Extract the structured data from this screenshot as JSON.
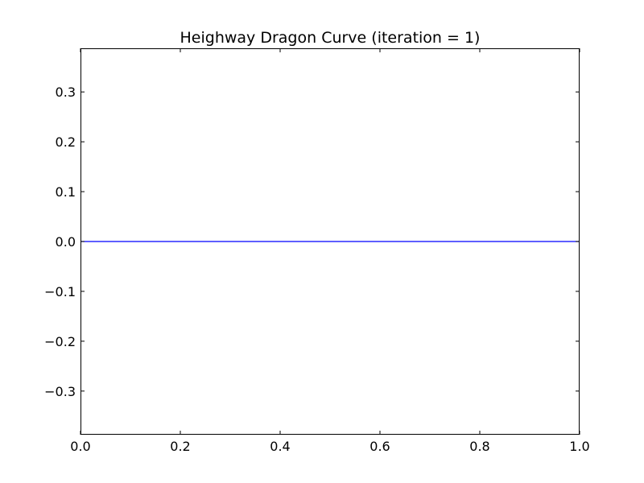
{
  "chart_data": {
    "type": "line",
    "title": "Heighway Dragon Curve  (iteration = 1)",
    "xlabel": "",
    "ylabel": "",
    "xlim": [
      0.0,
      1.0
    ],
    "ylim": [
      -0.3875,
      0.3875
    ],
    "x_ticks": [
      "0.0",
      "0.2",
      "0.4",
      "0.6",
      "0.8",
      "1.0"
    ],
    "x_tick_values": [
      0.0,
      0.2,
      0.4,
      0.6,
      0.8,
      1.0
    ],
    "y_ticks": [
      "0.3",
      "0.2",
      "0.1",
      "0.0",
      "−0.1",
      "−0.2",
      "−0.3"
    ],
    "y_tick_values": [
      0.3,
      0.2,
      0.1,
      0.0,
      -0.1,
      -0.2,
      -0.3
    ],
    "grid": false,
    "series": [
      {
        "x": [
          0.0,
          1.0
        ],
        "y": [
          0.0,
          0.0
        ],
        "color": "#0000ff"
      }
    ]
  }
}
